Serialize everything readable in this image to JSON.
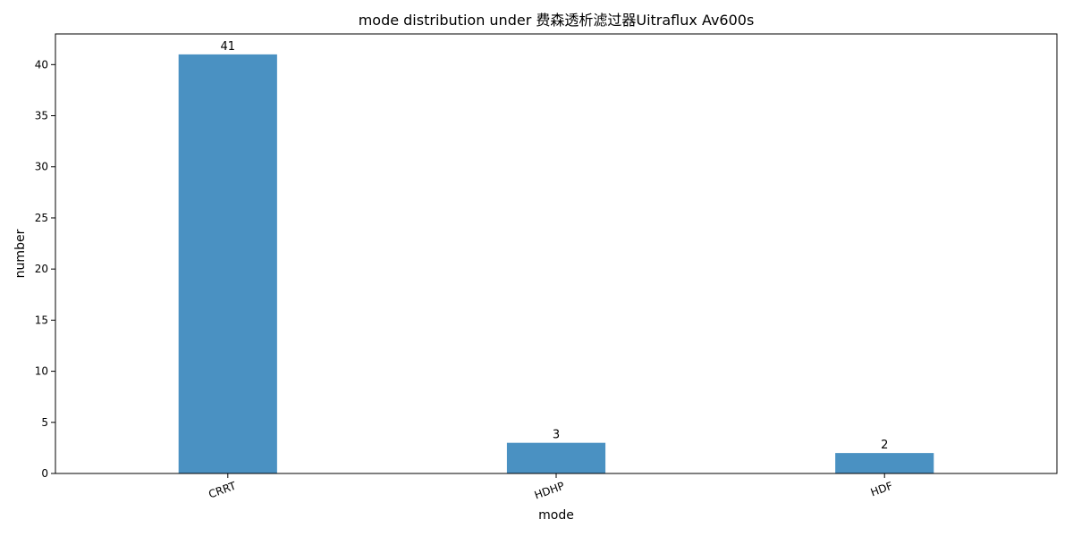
{
  "chart_data": {
    "type": "bar",
    "title": "mode distribution under 费森透析滤过器Uitraflux Av600s",
    "xlabel": "mode",
    "ylabel": "number",
    "categories": [
      "CRRT",
      "HDHP",
      "HDF"
    ],
    "values": [
      41,
      3,
      2
    ],
    "ylim": [
      0,
      43
    ],
    "yticks": [
      0,
      5,
      10,
      15,
      20,
      25,
      30,
      35,
      40
    ],
    "bar_color": "#4a91c2",
    "grid": false,
    "legend": "none"
  }
}
